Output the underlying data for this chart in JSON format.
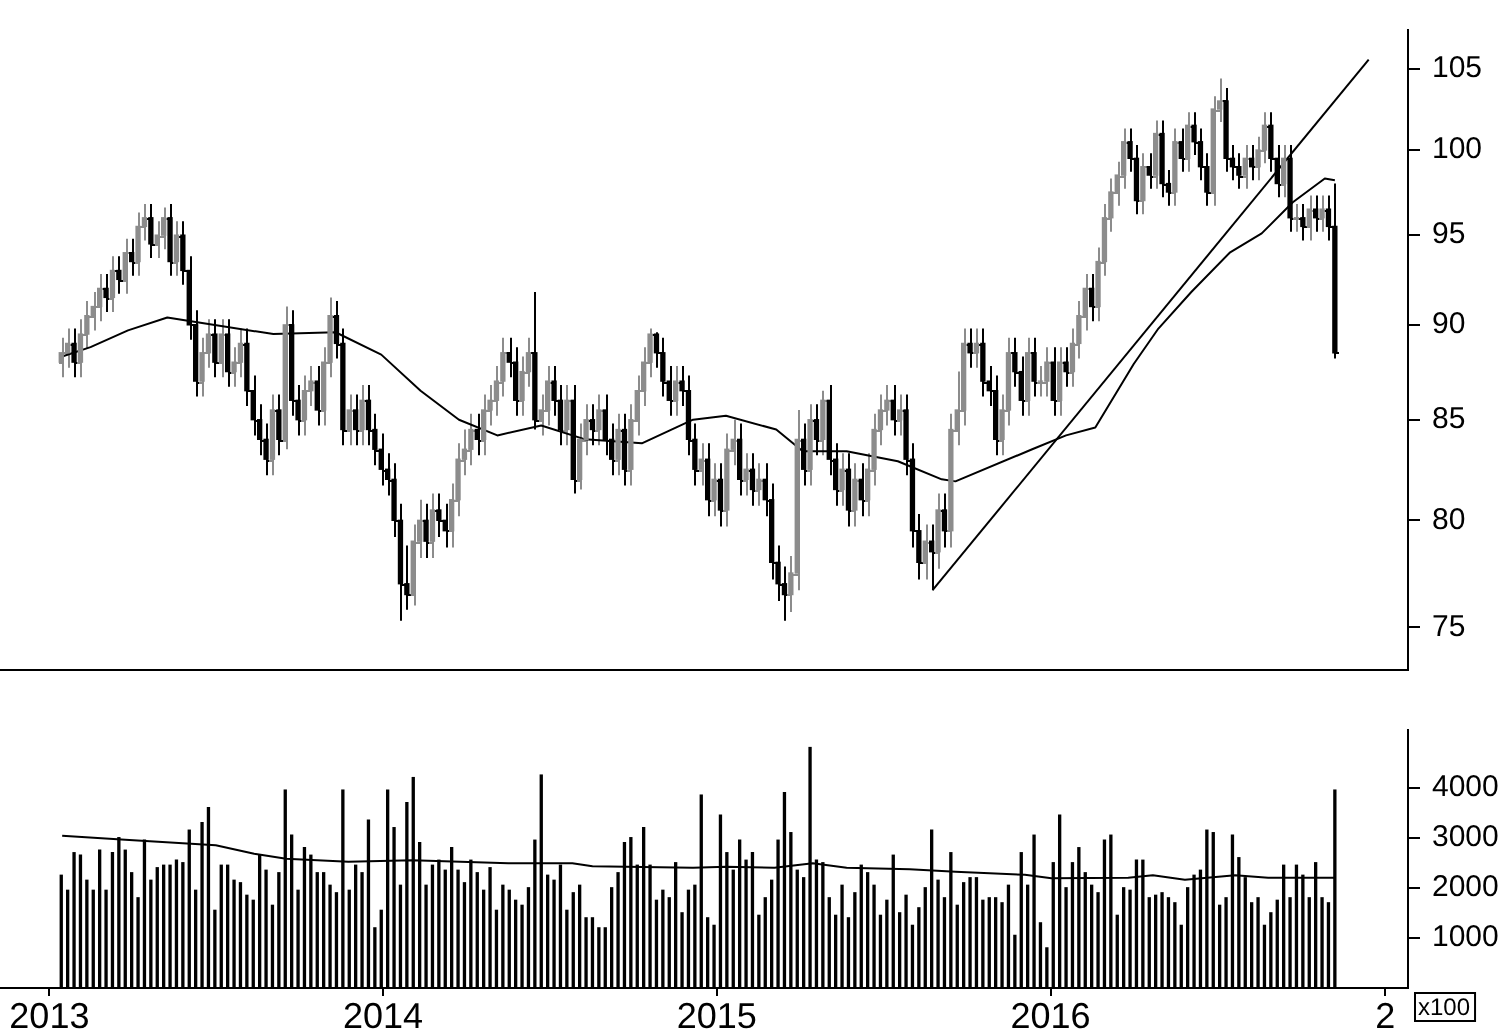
{
  "chart_data": [
    {
      "type": "candlestick",
      "colors": [
        "#8c8c8c",
        "#8c8c8c",
        "#000000",
        "#8c8c8c",
        "#8c8c8c",
        "#8c8c8c",
        "#8c8c8c",
        "#000000",
        "#8c8c8c",
        "#000000",
        "#8c8c8c",
        "#000000",
        "#8c8c8c",
        "#8c8c8c",
        "#000000",
        "#8c8c8c",
        "#8c8c8c",
        "#000000",
        "#8c8c8c",
        "#000000",
        "#000000",
        "#000000",
        "#8c8c8c",
        "#8c8c8c",
        "#000000",
        "#8c8c8c",
        "#000000",
        "#8c8c8c",
        "#8c8c8c",
        "#000000",
        "#000000",
        "#000000",
        "#000000",
        "#8c8c8c",
        "#000000",
        "#8c8c8c",
        "#000000",
        "#000000",
        "#8c8c8c",
        "#8c8c8c",
        "#000000",
        "#8c8c8c",
        "#8c8c8c",
        "#000000",
        "#000000",
        "#8c8c8c",
        "#000000",
        "#8c8c8c",
        "#000000",
        "#000000",
        "#000000",
        "#000000",
        "#000000",
        "#000000",
        "#000000",
        "#8c8c8c",
        "#8c8c8c",
        "#000000",
        "#8c8c8c",
        "#000000",
        "#000000",
        "#8c8c8c",
        "#8c8c8c",
        "#8c8c8c",
        "#8c8c8c",
        "#000000",
        "#8c8c8c",
        "#8c8c8c",
        "#8c8c8c",
        "#8c8c8c",
        "#000000",
        "#000000",
        "#8c8c8c",
        "#8c8c8c",
        "#000000",
        "#8c8c8c",
        "#8c8c8c",
        "#000000",
        "#000000",
        "#8c8c8c",
        "#000000",
        "#8c8c8c",
        "#8c8c8c",
        "#000000",
        "#8c8c8c",
        "#000000",
        "#000000",
        "#8c8c8c",
        "#000000",
        "#8c8c8c",
        "#8c8c8c",
        "#8c8c8c",
        "#8c8c8c",
        "#000000",
        "#000000",
        "#000000",
        "#8c8c8c",
        "#000000",
        "#000000",
        "#000000",
        "#8c8c8c",
        "#000000",
        "#8c8c8c",
        "#000000",
        "#8c8c8c",
        "#8c8c8c",
        "#000000",
        "#8c8c8c",
        "#000000",
        "#8c8c8c",
        "#000000",
        "#000000",
        "#000000",
        "#000000",
        "#8c8c8c",
        "#8c8c8c",
        "#000000",
        "#8c8c8c",
        "#000000",
        "#8c8c8c",
        "#000000",
        "#000000",
        "#8c8c8c",
        "#000000",
        "#8c8c8c",
        "#000000",
        "#8c8c8c",
        "#8c8c8c",
        "#8c8c8c",
        "#8c8c8c",
        "#000000",
        "#8c8c8c",
        "#000000",
        "#000000",
        "#000000",
        "#8c8c8c",
        "#000000",
        "#8c8c8c",
        "#000000",
        "#8c8c8c",
        "#8c8c8c",
        "#8c8c8c",
        "#000000",
        "#8c8c8c",
        "#000000",
        "#000000",
        "#000000",
        "#8c8c8c",
        "#8c8c8c",
        "#000000",
        "#000000",
        "#8c8c8c",
        "#000000",
        "#8c8c8c",
        "#8c8c8c",
        "#000000",
        "#8c8c8c",
        "#000000",
        "#8c8c8c",
        "#8c8c8c",
        "#8c8c8c",
        "#000000",
        "#8c8c8c",
        "#8c8c8c",
        "#8c8c8c",
        "#8c8c8c",
        "#8c8c8c",
        "#000000",
        "#000000",
        "#8c8c8c",
        "#000000",
        "#8c8c8c",
        "#000000",
        "#000000",
        "#8c8c8c",
        "#000000",
        "#8c8c8c",
        "#000000",
        "#000000",
        "#000000",
        "#8c8c8c",
        "#8c8c8c",
        "#000000",
        "#000000",
        "#000000",
        "#8c8c8c",
        "#000000",
        "#8c8c8c",
        "#8c8c8c",
        "#000000",
        "#000000",
        "#8c8c8c",
        "#000000",
        "#8c8c8c",
        "#000000",
        "#8c8c8c",
        "#000000",
        "#8c8c8c",
        "#000000",
        "#000000"
      ],
      "log": true,
      "marker": "none",
      "tick_labels": "y",
      "xlim": [
        "2012-11-08",
        "2017-01-26"
      ],
      "ylim": [
        73.1,
        107.5
      ],
      "yticks": [
        75,
        80,
        85,
        90,
        95,
        100,
        105
      ],
      "x": [
        "2013-01-14",
        "2013-01-21",
        "2013-01-28",
        "2013-02-04",
        "2013-02-11",
        "2013-02-18",
        "2013-02-25",
        "2013-03-04",
        "2013-03-11",
        "2013-03-18",
        "2013-03-25",
        "2013-04-01",
        "2013-04-08",
        "2013-04-15",
        "2013-04-22",
        "2013-04-29",
        "2013-05-06",
        "2013-05-13",
        "2013-05-20",
        "2013-05-27",
        "2013-06-03",
        "2013-06-10",
        "2013-06-17",
        "2013-06-24",
        "2013-07-01",
        "2013-07-08",
        "2013-07-15",
        "2013-07-22",
        "2013-07-29",
        "2013-08-05",
        "2013-08-12",
        "2013-08-19",
        "2013-08-26",
        "2013-09-02",
        "2013-09-09",
        "2013-09-16",
        "2013-09-23",
        "2013-09-30",
        "2013-10-07",
        "2013-10-14",
        "2013-10-21",
        "2013-10-28",
        "2013-11-04",
        "2013-11-11",
        "2013-11-18",
        "2013-11-25",
        "2013-12-02",
        "2013-12-09",
        "2013-12-16",
        "2013-12-23",
        "2013-12-30",
        "2014-01-06",
        "2014-01-13",
        "2014-01-20",
        "2014-01-27",
        "2014-02-03",
        "2014-02-10",
        "2014-02-17",
        "2014-02-24",
        "2014-03-03",
        "2014-03-10",
        "2014-03-17",
        "2014-03-24",
        "2014-03-31",
        "2014-04-07",
        "2014-04-14",
        "2014-04-21",
        "2014-04-28",
        "2014-05-05",
        "2014-05-12",
        "2014-05-19",
        "2014-05-26",
        "2014-06-02",
        "2014-06-09",
        "2014-06-16",
        "2014-06-23",
        "2014-06-30",
        "2014-07-07",
        "2014-07-14",
        "2014-07-21",
        "2014-07-28",
        "2014-08-04",
        "2014-08-11",
        "2014-08-18",
        "2014-08-25",
        "2014-09-01",
        "2014-09-08",
        "2014-09-15",
        "2014-09-22",
        "2014-09-29",
        "2014-10-06",
        "2014-10-13",
        "2014-10-20",
        "2014-10-27",
        "2014-11-03",
        "2014-11-10",
        "2014-11-17",
        "2014-11-24",
        "2014-12-01",
        "2014-12-08",
        "2014-12-15",
        "2014-12-22",
        "2014-12-29",
        "2015-01-05",
        "2015-01-12",
        "2015-01-19",
        "2015-01-26",
        "2015-02-02",
        "2015-02-09",
        "2015-02-16",
        "2015-02-23",
        "2015-03-02",
        "2015-03-09",
        "2015-03-16",
        "2015-03-23",
        "2015-03-30",
        "2015-04-06",
        "2015-04-13",
        "2015-04-20",
        "2015-04-27",
        "2015-05-04",
        "2015-05-11",
        "2015-05-18",
        "2015-05-25",
        "2015-06-01",
        "2015-06-08",
        "2015-06-15",
        "2015-06-22",
        "2015-06-29",
        "2015-07-06",
        "2015-07-13",
        "2015-07-20",
        "2015-07-27",
        "2015-08-03",
        "2015-08-10",
        "2015-08-17",
        "2015-08-24",
        "2015-08-31",
        "2015-09-07",
        "2015-09-14",
        "2015-09-21",
        "2015-09-28",
        "2015-10-05",
        "2015-10-12",
        "2015-10-19",
        "2015-10-26",
        "2015-11-02",
        "2015-11-09",
        "2015-11-16",
        "2015-11-23",
        "2015-11-30",
        "2015-12-07",
        "2015-12-14",
        "2015-12-21",
        "2015-12-28",
        "2016-01-04",
        "2016-01-11",
        "2016-01-18",
        "2016-01-25",
        "2016-02-01",
        "2016-02-08",
        "2016-02-15",
        "2016-02-22",
        "2016-02-29",
        "2016-03-07",
        "2016-03-14",
        "2016-03-21",
        "2016-03-28",
        "2016-04-04",
        "2016-04-11",
        "2016-04-18",
        "2016-04-25",
        "2016-05-02",
        "2016-05-09",
        "2016-05-16",
        "2016-05-23",
        "2016-05-30",
        "2016-06-06",
        "2016-06-13",
        "2016-06-20",
        "2016-06-27",
        "2016-07-04",
        "2016-07-11",
        "2016-07-18",
        "2016-07-25",
        "2016-08-01",
        "2016-08-08",
        "2016-08-15",
        "2016-08-22",
        "2016-08-29",
        "2016-09-05",
        "2016-09-12",
        "2016-09-19",
        "2016-09-26",
        "2016-10-03",
        "2016-10-10",
        "2016-10-17",
        "2016-10-24",
        "2016-10-31",
        "2016-11-07"
      ],
      "ohlc": [
        [
          88,
          89.3,
          87.2,
          88.5
        ],
        [
          88.5,
          89.8,
          87.7,
          89
        ],
        [
          89,
          89.8,
          87.2,
          88
        ],
        [
          88,
          90.3,
          87.2,
          89.5
        ],
        [
          89.5,
          91.3,
          88.7,
          90.5
        ],
        [
          90.5,
          91.8,
          89.7,
          91
        ],
        [
          91,
          92.8,
          90.2,
          92
        ],
        [
          92,
          92.8,
          90.7,
          91.5
        ],
        [
          91.5,
          93.8,
          90.7,
          93
        ],
        [
          93,
          93.8,
          91.7,
          92.5
        ],
        [
          92.5,
          94.8,
          91.7,
          94
        ],
        [
          94,
          94.8,
          92.7,
          93.5
        ],
        [
          93.5,
          96.3,
          92.7,
          95.5
        ],
        [
          95.5,
          96.8,
          94.7,
          96
        ],
        [
          96,
          96.8,
          93.7,
          94.5
        ],
        [
          94.5,
          95.8,
          93.7,
          95
        ],
        [
          95,
          96.6,
          94.2,
          96
        ],
        [
          96,
          96.8,
          92.7,
          93.5
        ],
        [
          93.5,
          95.8,
          92.7,
          95
        ],
        [
          95,
          95.8,
          92.2,
          93
        ],
        [
          93,
          93.8,
          89.2,
          90
        ],
        [
          90,
          90.8,
          86.2,
          87
        ],
        [
          87,
          89.3,
          86.2,
          88.5
        ],
        [
          88.5,
          90.3,
          87.7,
          89.5
        ],
        [
          89.5,
          90.3,
          87.2,
          88
        ],
        [
          88,
          90.3,
          87.2,
          89.5
        ],
        [
          89.5,
          90.3,
          86.7,
          87.5
        ],
        [
          87.5,
          88.8,
          86.7,
          88
        ],
        [
          88,
          89.8,
          87.2,
          89
        ],
        [
          89,
          89.8,
          85.7,
          86.5
        ],
        [
          86.5,
          87.3,
          84.2,
          85
        ],
        [
          85,
          85.8,
          83.2,
          84
        ],
        [
          84,
          84.8,
          82.2,
          83
        ],
        [
          83,
          86.3,
          82.2,
          85.5
        ],
        [
          85.5,
          86.3,
          83.2,
          84
        ],
        [
          84,
          91,
          83.5,
          90
        ],
        [
          90,
          90.8,
          85.2,
          86
        ],
        [
          86,
          86.8,
          84.2,
          85
        ],
        [
          85,
          87.3,
          84.2,
          86.5
        ],
        [
          86.5,
          87.8,
          85.7,
          87
        ],
        [
          87,
          87.8,
          84.7,
          85.5
        ],
        [
          85.5,
          88.8,
          84.7,
          88
        ],
        [
          88,
          91.5,
          87.2,
          90.5
        ],
        [
          90.5,
          91.3,
          88.2,
          89
        ],
        [
          89,
          89.8,
          83.7,
          84.5
        ],
        [
          84.5,
          86.3,
          83.7,
          85.5
        ],
        [
          85.5,
          86.3,
          83.7,
          84.5
        ],
        [
          84.5,
          86.8,
          83.7,
          86
        ],
        [
          86,
          86.8,
          83.7,
          84.5
        ],
        [
          84.5,
          85.3,
          82.7,
          83.5
        ],
        [
          83.5,
          84.3,
          81.7,
          82.5
        ],
        [
          82.5,
          83.3,
          81.2,
          82
        ],
        [
          82,
          82.8,
          79.2,
          80
        ],
        [
          80,
          80.8,
          75.3,
          77
        ],
        [
          77,
          78.8,
          75.8,
          76.5
        ],
        [
          76.5,
          79.8,
          76,
          79
        ],
        [
          79,
          81,
          78.2,
          80
        ],
        [
          80,
          80.8,
          78.2,
          79
        ],
        [
          79,
          81.3,
          78.2,
          80.5
        ],
        [
          80.5,
          81.3,
          79.2,
          80
        ],
        [
          80,
          80.8,
          78.7,
          79.5
        ],
        [
          79.5,
          81.8,
          78.7,
          81
        ],
        [
          81,
          83.8,
          80.2,
          83
        ],
        [
          83,
          84.5,
          82.2,
          83.5
        ],
        [
          83.5,
          85.3,
          82.7,
          84.5
        ],
        [
          84.5,
          85.3,
          83.2,
          84
        ],
        [
          84,
          86.3,
          83.2,
          85.5
        ],
        [
          85.5,
          86.8,
          84.7,
          86
        ],
        [
          86,
          87.8,
          85.2,
          87
        ],
        [
          87,
          89.3,
          86.2,
          88.5
        ],
        [
          88.5,
          89.3,
          87.2,
          88
        ],
        [
          88,
          88.8,
          85.2,
          86
        ],
        [
          86,
          88.3,
          85.2,
          87.5
        ],
        [
          87.5,
          89.3,
          86.7,
          88.5
        ],
        [
          88.5,
          91.8,
          84.5,
          85
        ],
        [
          85,
          86.3,
          84.2,
          85.5
        ],
        [
          85.5,
          87.8,
          84.7,
          87
        ],
        [
          87,
          87.8,
          85.2,
          86
        ],
        [
          86,
          86.8,
          83.7,
          84.5
        ],
        [
          84.5,
          86.8,
          83.7,
          86
        ],
        [
          86,
          86.8,
          81.3,
          82
        ],
        [
          82,
          84.8,
          81.5,
          84
        ],
        [
          84,
          85.8,
          83.2,
          85
        ],
        [
          85,
          85.8,
          83.7,
          84.5
        ],
        [
          84.5,
          86.3,
          83.7,
          85.5
        ],
        [
          85.5,
          86.3,
          83.2,
          84
        ],
        [
          84,
          84.8,
          82.2,
          83
        ],
        [
          83,
          85.3,
          82.2,
          84.5
        ],
        [
          84.5,
          85.3,
          81.7,
          82.5
        ],
        [
          82.5,
          85.8,
          81.7,
          85
        ],
        [
          85,
          87.3,
          84.2,
          86.5
        ],
        [
          86.5,
          88.8,
          85.7,
          88
        ],
        [
          88,
          89.8,
          87.2,
          89.5
        ],
        [
          89.5,
          89.6,
          87.7,
          88.5
        ],
        [
          88.5,
          89.3,
          86.2,
          87
        ],
        [
          87,
          87.8,
          85.2,
          86
        ],
        [
          86,
          87.8,
          85.2,
          87
        ],
        [
          87,
          87.8,
          85.7,
          86.5
        ],
        [
          86.5,
          87.3,
          83.2,
          84
        ],
        [
          84,
          84.8,
          81.7,
          82.5
        ],
        [
          82.5,
          83.8,
          81.7,
          83
        ],
        [
          83,
          83.8,
          80.2,
          81
        ],
        [
          81,
          82.8,
          80.2,
          82
        ],
        [
          82,
          82.8,
          79.7,
          80.5
        ],
        [
          80.5,
          84.3,
          79.7,
          83.5
        ],
        [
          83.5,
          85,
          82.7,
          84
        ],
        [
          84,
          84.8,
          81.2,
          82
        ],
        [
          82,
          83.3,
          81.2,
          82.5
        ],
        [
          82.5,
          83.3,
          80.7,
          81.5
        ],
        [
          81.5,
          82.8,
          80.7,
          82
        ],
        [
          82,
          82.8,
          80.2,
          81
        ],
        [
          81,
          81.8,
          77.2,
          78
        ],
        [
          78,
          78.8,
          76.2,
          77
        ],
        [
          77,
          77.8,
          75.3,
          76.5
        ],
        [
          76.5,
          78.3,
          75.7,
          77.5
        ],
        [
          77.5,
          85.5,
          76.7,
          84
        ],
        [
          84,
          84.8,
          81.7,
          82.5
        ],
        [
          82.5,
          85.8,
          81.7,
          85
        ],
        [
          85,
          85.8,
          83.2,
          84
        ],
        [
          84,
          86.5,
          83.2,
          86
        ],
        [
          86,
          86.8,
          82.2,
          83
        ],
        [
          83,
          83.8,
          80.7,
          81.5
        ],
        [
          81.5,
          83.3,
          80.7,
          82.5
        ],
        [
          82.5,
          83.3,
          79.7,
          80.5
        ],
        [
          80.5,
          82.8,
          79.7,
          82
        ],
        [
          82,
          82.8,
          80.2,
          81
        ],
        [
          81,
          83.3,
          80.2,
          82.5
        ],
        [
          82.5,
          85.3,
          81.7,
          84.5
        ],
        [
          84.5,
          86.3,
          83.7,
          85.5
        ],
        [
          85.5,
          86.8,
          84.7,
          86
        ],
        [
          86,
          86.8,
          84.2,
          85
        ],
        [
          85,
          86.3,
          84.2,
          85.5
        ],
        [
          85.5,
          86.3,
          82.2,
          83
        ],
        [
          83,
          83.8,
          78.7,
          79.5
        ],
        [
          79.5,
          80.3,
          77.2,
          78
        ],
        [
          78,
          79.8,
          77.2,
          79
        ],
        [
          79,
          79.8,
          76.7,
          78.5
        ],
        [
          78.5,
          81.3,
          77.7,
          80.5
        ],
        [
          80.5,
          81.3,
          78.7,
          79.5
        ],
        [
          79.5,
          85.3,
          78.7,
          84.5
        ],
        [
          84.5,
          87.5,
          83.7,
          85.5
        ],
        [
          85.5,
          89.8,
          84.7,
          89
        ],
        [
          89,
          89.8,
          87.7,
          88.5
        ],
        [
          88.5,
          89.8,
          87.7,
          89
        ],
        [
          89,
          89.8,
          86.2,
          87
        ],
        [
          87,
          87.8,
          85.7,
          86.5
        ],
        [
          86.5,
          87.3,
          83.2,
          84
        ],
        [
          84,
          86.3,
          83.2,
          85.5
        ],
        [
          85.5,
          89.3,
          84.7,
          88.5
        ],
        [
          88.5,
          89.3,
          86.7,
          87.5
        ],
        [
          87.5,
          88.3,
          85.2,
          86
        ],
        [
          86,
          89.3,
          85.2,
          88.5
        ],
        [
          88.5,
          89.3,
          86.2,
          87
        ],
        [
          87,
          87.8,
          86.2,
          87
        ],
        [
          87,
          88.8,
          86.2,
          88
        ],
        [
          88,
          88.8,
          85.2,
          86
        ],
        [
          86,
          88.8,
          85.2,
          88
        ],
        [
          88,
          88.8,
          86.7,
          87.5
        ],
        [
          87.5,
          89.8,
          86.7,
          89
        ],
        [
          89,
          91.3,
          88.2,
          90.5
        ],
        [
          90.5,
          92.8,
          89.7,
          92
        ],
        [
          92,
          92.8,
          90.2,
          91
        ],
        [
          91,
          94.3,
          90.2,
          93.5
        ],
        [
          93.5,
          96.8,
          92.7,
          96
        ],
        [
          96,
          98.3,
          95.2,
          97.5
        ],
        [
          97.5,
          99.3,
          96.7,
          98.5
        ],
        [
          98.5,
          101.3,
          97.7,
          100.5
        ],
        [
          100.5,
          101.3,
          98.7,
          99.5
        ],
        [
          99.5,
          100.3,
          96.2,
          97
        ],
        [
          97,
          99.8,
          96.2,
          99
        ],
        [
          99,
          99.8,
          97.7,
          98.5
        ],
        [
          98.5,
          101.8,
          97.7,
          101
        ],
        [
          101,
          101.8,
          97.2,
          98
        ],
        [
          98,
          98.8,
          96.7,
          97.5
        ],
        [
          97.5,
          101.3,
          96.7,
          100.5
        ],
        [
          100.5,
          101.3,
          98.7,
          99.5
        ],
        [
          99.5,
          102.3,
          98.7,
          101.5
        ],
        [
          101.5,
          102.3,
          99.7,
          100.5
        ],
        [
          100.5,
          101.3,
          98.2,
          99
        ],
        [
          99,
          99.8,
          96.7,
          97.5
        ],
        [
          97.5,
          103.3,
          96.7,
          102.5
        ],
        [
          102.5,
          104.4,
          101.7,
          103
        ],
        [
          103,
          103.8,
          98.7,
          99.5
        ],
        [
          99.5,
          100.3,
          98.2,
          99
        ],
        [
          99,
          99.8,
          97.7,
          98.5
        ],
        [
          98.5,
          100.3,
          97.7,
          99.5
        ],
        [
          99.5,
          100.3,
          98.2,
          99
        ],
        [
          99,
          100.8,
          98.2,
          100
        ],
        [
          100,
          102.3,
          99.2,
          101.5
        ],
        [
          101.5,
          102.3,
          98.7,
          99.5
        ],
        [
          99.5,
          100.3,
          97.2,
          98
        ],
        [
          98,
          100.3,
          97.2,
          99.5
        ],
        [
          99.5,
          100.3,
          95.2,
          96
        ],
        [
          96,
          96.8,
          95.2,
          96
        ],
        [
          96,
          96.8,
          94.7,
          95.5
        ],
        [
          95.5,
          97.3,
          94.7,
          96.5
        ],
        [
          96.5,
          97.3,
          95.2,
          96
        ],
        [
          96,
          97.3,
          95.2,
          96.5
        ],
        [
          96.5,
          97.3,
          94.7,
          95.5
        ],
        [
          95.5,
          98,
          88.2,
          88.5
        ]
      ],
      "series": [
        {
          "type": "line",
          "color": "#000000",
          "x": [
            "2013-01-15",
            "2013-02-15",
            "2013-03-28",
            "2013-05-10",
            "2013-06-17",
            "2013-09-03",
            "2013-11-10",
            "2013-12-30",
            "2014-02-11",
            "2014-03-25",
            "2014-05-06",
            "2014-06-23",
            "2014-08-10",
            "2014-10-11",
            "2014-12-06",
            "2015-01-11",
            "2015-03-07",
            "2015-04-05",
            "2015-05-23",
            "2015-07-18",
            "2015-09-04",
            "2015-09-19",
            "2015-12-12",
            "2016-01-18",
            "2016-02-19",
            "2016-04-01",
            "2016-04-28",
            "2016-06-03",
            "2016-07-15",
            "2016-08-19",
            "2016-09-22",
            "2016-10-27",
            "2016-11-07"
          ],
          "values": [
            88.3,
            88.8,
            89.7,
            90.4,
            90.1,
            89.5,
            89.6,
            88.4,
            86.5,
            85,
            84.2,
            84.7,
            84,
            83.8,
            85,
            85.2,
            84.5,
            83.4,
            83.4,
            82.9,
            82,
            81.9,
            83.5,
            84.2,
            84.6,
            87.9,
            89.8,
            91.8,
            94,
            95.1,
            96.9,
            98.3,
            98.2
          ]
        },
        {
          "type": "line",
          "color": "#000000",
          "x": [
            "2015-08-25",
            "2016-12-14"
          ],
          "values": [
            76.7,
            105.6
          ]
        }
      ]
    },
    {
      "type": "bar",
      "marker": "none",
      "xlim": [
        "2012-11-08",
        "2017-01-26"
      ],
      "xticks": [
        "2013",
        "2014",
        "2015",
        "2016",
        {
          "value": "2017",
          "label": "2"
        }
      ],
      "ylim": [
        0,
        5150
      ],
      "yticks": [
        1000,
        2000,
        3000,
        4000
      ],
      "annotations": [
        "x100"
      ],
      "x": [
        "2013-01-14",
        "2013-01-21",
        "2013-01-28",
        "2013-02-04",
        "2013-02-11",
        "2013-02-18",
        "2013-02-25",
        "2013-03-04",
        "2013-03-11",
        "2013-03-18",
        "2013-03-25",
        "2013-04-01",
        "2013-04-08",
        "2013-04-15",
        "2013-04-22",
        "2013-04-29",
        "2013-05-06",
        "2013-05-13",
        "2013-05-20",
        "2013-05-27",
        "2013-06-03",
        "2013-06-10",
        "2013-06-17",
        "2013-06-24",
        "2013-07-01",
        "2013-07-08",
        "2013-07-15",
        "2013-07-22",
        "2013-07-29",
        "2013-08-05",
        "2013-08-12",
        "2013-08-19",
        "2013-08-26",
        "2013-09-02",
        "2013-09-09",
        "2013-09-16",
        "2013-09-23",
        "2013-09-30",
        "2013-10-07",
        "2013-10-14",
        "2013-10-21",
        "2013-10-28",
        "2013-11-04",
        "2013-11-11",
        "2013-11-18",
        "2013-11-25",
        "2013-12-02",
        "2013-12-09",
        "2013-12-16",
        "2013-12-23",
        "2013-12-30",
        "2014-01-06",
        "2014-01-13",
        "2014-01-20",
        "2014-01-27",
        "2014-02-03",
        "2014-02-10",
        "2014-02-17",
        "2014-02-24",
        "2014-03-03",
        "2014-03-10",
        "2014-03-17",
        "2014-03-24",
        "2014-03-31",
        "2014-04-07",
        "2014-04-14",
        "2014-04-21",
        "2014-04-28",
        "2014-05-05",
        "2014-05-12",
        "2014-05-19",
        "2014-05-26",
        "2014-06-02",
        "2014-06-09",
        "2014-06-16",
        "2014-06-23",
        "2014-06-30",
        "2014-07-07",
        "2014-07-14",
        "2014-07-21",
        "2014-07-28",
        "2014-08-04",
        "2014-08-11",
        "2014-08-18",
        "2014-08-25",
        "2014-09-01",
        "2014-09-08",
        "2014-09-15",
        "2014-09-22",
        "2014-09-29",
        "2014-10-06",
        "2014-10-13",
        "2014-10-20",
        "2014-10-27",
        "2014-11-03",
        "2014-11-10",
        "2014-11-17",
        "2014-11-24",
        "2014-12-01",
        "2014-12-08",
        "2014-12-15",
        "2014-12-22",
        "2014-12-29",
        "2015-01-05",
        "2015-01-12",
        "2015-01-19",
        "2015-01-26",
        "2015-02-02",
        "2015-02-09",
        "2015-02-16",
        "2015-02-23",
        "2015-03-02",
        "2015-03-09",
        "2015-03-16",
        "2015-03-23",
        "2015-03-30",
        "2015-04-06",
        "2015-04-13",
        "2015-04-20",
        "2015-04-27",
        "2015-05-04",
        "2015-05-11",
        "2015-05-18",
        "2015-05-25",
        "2015-06-01",
        "2015-06-08",
        "2015-06-15",
        "2015-06-22",
        "2015-06-29",
        "2015-07-06",
        "2015-07-13",
        "2015-07-20",
        "2015-07-27",
        "2015-08-03",
        "2015-08-10",
        "2015-08-17",
        "2015-08-24",
        "2015-08-31",
        "2015-09-07",
        "2015-09-14",
        "2015-09-21",
        "2015-09-28",
        "2015-10-05",
        "2015-10-12",
        "2015-10-19",
        "2015-10-26",
        "2015-11-02",
        "2015-11-09",
        "2015-11-16",
        "2015-11-23",
        "2015-11-30",
        "2015-12-07",
        "2015-12-14",
        "2015-12-21",
        "2015-12-28",
        "2016-01-04",
        "2016-01-11",
        "2016-01-18",
        "2016-01-25",
        "2016-02-01",
        "2016-02-08",
        "2016-02-15",
        "2016-02-22",
        "2016-02-29",
        "2016-03-07",
        "2016-03-14",
        "2016-03-21",
        "2016-03-28",
        "2016-04-04",
        "2016-04-11",
        "2016-04-18",
        "2016-04-25",
        "2016-05-02",
        "2016-05-09",
        "2016-05-16",
        "2016-05-23",
        "2016-05-30",
        "2016-06-06",
        "2016-06-13",
        "2016-06-20",
        "2016-06-27",
        "2016-07-04",
        "2016-07-11",
        "2016-07-18",
        "2016-07-25",
        "2016-08-01",
        "2016-08-08",
        "2016-08-15",
        "2016-08-22",
        "2016-08-29",
        "2016-09-05",
        "2016-09-12",
        "2016-09-19",
        "2016-09-26",
        "2016-10-03",
        "2016-10-10",
        "2016-10-17",
        "2016-10-24",
        "2016-10-31",
        "2016-11-07"
      ],
      "series": [
        {
          "type": "bar",
          "color": "#000000",
          "values": [
            2250,
            1950,
            2700,
            2650,
            2150,
            1950,
            2750,
            1950,
            2700,
            3000,
            2750,
            2300,
            1800,
            2950,
            2150,
            2400,
            2450,
            2450,
            2550,
            2500,
            3150,
            1950,
            3300,
            3600,
            1550,
            2450,
            2450,
            2150,
            2100,
            1850,
            1750,
            2650,
            2350,
            1650,
            2300,
            3950,
            3050,
            1950,
            2800,
            2650,
            2300,
            2300,
            2050,
            1900,
            3950,
            1950,
            2450,
            2300,
            3350,
            1200,
            1550,
            3950,
            3200,
            2050,
            3700,
            4200,
            2900,
            2050,
            2450,
            2550,
            2350,
            2800,
            2350,
            2100,
            2550,
            2300,
            1950,
            2400,
            1550,
            2050,
            1950,
            1750,
            1650,
            2000,
            2950,
            4250,
            2250,
            2150,
            2450,
            1550,
            1900,
            2050,
            1400,
            1400,
            1200,
            1200,
            2000,
            2300,
            2900,
            3000,
            2450,
            3200,
            2450,
            1750,
            1950,
            1800,
            2500,
            1500,
            1950,
            2050,
            3850,
            1400,
            1250,
            3450,
            2700,
            2350,
            2950,
            2550,
            2700,
            1450,
            1800,
            2150,
            2950,
            3900,
            3100,
            2350,
            2200,
            4800,
            2550,
            2500,
            1800,
            1450,
            2050,
            1400,
            1900,
            2450,
            2300,
            2050,
            1450,
            1750,
            2650,
            1500,
            1850,
            1250,
            1600,
            2000,
            3150,
            2150,
            1800,
            2700,
            1650,
            2100,
            2200,
            2200,
            1750,
            1800,
            1800,
            1700,
            2050,
            1050,
            2700,
            2050,
            3050,
            1300,
            800,
            2500,
            3450,
            2000,
            2500,
            2800,
            2300,
            2050,
            1900,
            2950,
            3050,
            1450,
            2000,
            1950,
            2550,
            2550,
            1800,
            1850,
            1900,
            1800,
            1700,
            1250,
            2000,
            2250,
            2350,
            3150,
            3100,
            1650,
            1800,
            3050,
            2600,
            2200,
            1700,
            1800,
            1250,
            1500,
            1750,
            2450,
            1800,
            2450,
            2250,
            1800,
            2500,
            1800,
            1700,
            3950
          ]
        },
        {
          "type": "line",
          "color": "#000000",
          "x": [
            "2013-01-15",
            "2013-03-25",
            "2013-06-05",
            "2013-07-02",
            "2013-08-13",
            "2013-09-17",
            "2013-11-24",
            "2014-02-02",
            "2014-05-18",
            "2014-07-27",
            "2014-08-18",
            "2014-12-06",
            "2015-01-11",
            "2015-03-05",
            "2015-04-16",
            "2015-05-23",
            "2015-07-31",
            "2015-09-19",
            "2015-12-04",
            "2016-01-02",
            "2016-03-26",
            "2016-04-22",
            "2016-05-27",
            "2016-07-21",
            "2016-08-26",
            "2016-11-07"
          ],
          "values": [
            3040,
            2960,
            2880,
            2850,
            2680,
            2580,
            2520,
            2550,
            2490,
            2490,
            2430,
            2400,
            2420,
            2400,
            2490,
            2400,
            2370,
            2320,
            2260,
            2190,
            2200,
            2250,
            2160,
            2250,
            2200,
            2200
          ]
        }
      ]
    }
  ]
}
